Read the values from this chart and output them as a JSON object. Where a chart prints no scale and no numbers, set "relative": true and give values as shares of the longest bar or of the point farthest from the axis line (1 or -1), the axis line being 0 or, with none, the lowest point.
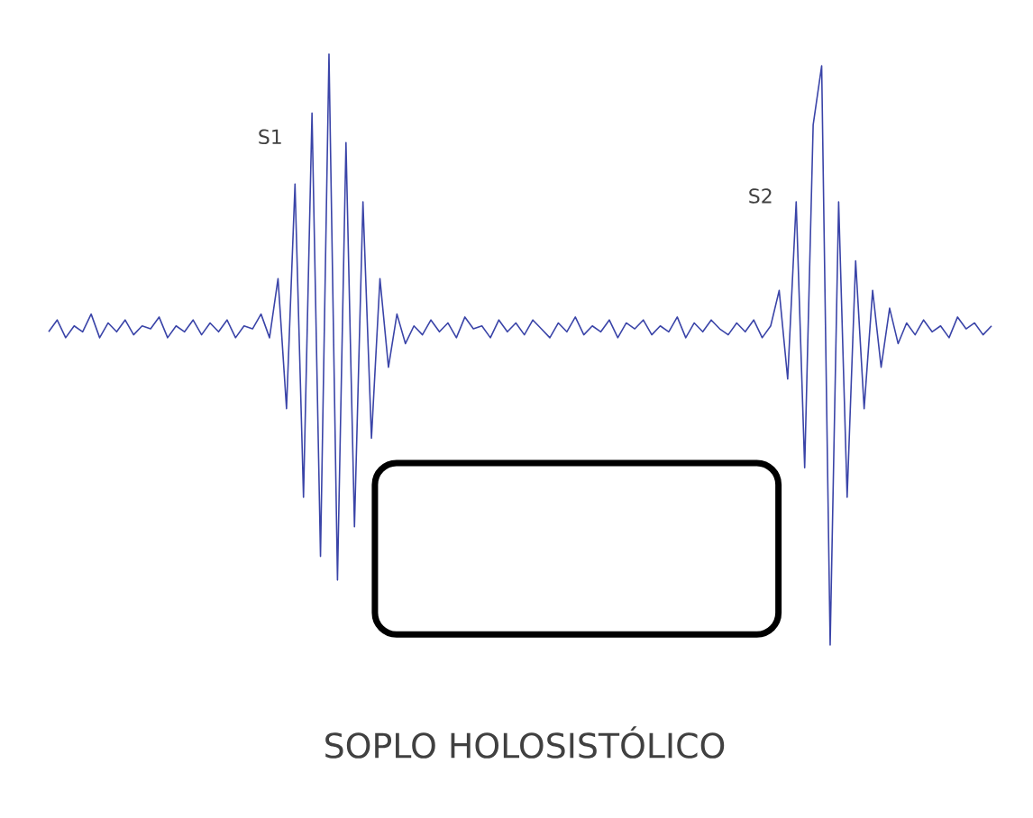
{
  "chart_data": {
    "type": "line",
    "relative": true,
    "title": "SOPLO HOLOSISTÓLICO",
    "color": "#3a44a8",
    "annotations": [
      "S1",
      "S2"
    ],
    "categories": [
      null,
      null,
      null,
      null,
      null,
      null,
      null,
      null,
      null,
      null,
      null,
      null,
      null,
      null,
      null,
      null,
      null,
      null,
      null,
      null,
      null,
      null,
      null,
      null,
      null,
      null,
      null,
      null,
      null,
      null,
      null,
      null,
      null,
      null,
      null,
      null,
      null,
      null,
      null,
      null,
      null,
      null,
      null,
      null,
      null,
      null,
      null,
      null,
      null,
      null,
      null,
      null,
      null,
      null,
      null,
      null,
      null,
      null,
      null,
      null,
      null,
      null,
      null,
      null,
      null,
      null,
      null,
      null,
      null,
      null,
      null,
      null,
      null,
      null,
      null,
      null,
      null,
      null,
      null,
      null,
      null,
      null,
      null,
      null,
      null,
      null,
      null,
      null,
      null,
      null,
      null,
      null,
      null,
      null,
      null,
      null,
      null,
      null,
      null,
      null,
      null,
      null,
      null,
      null,
      null,
      null,
      null,
      null,
      null,
      null,
      null,
      null
    ],
    "values": [
      0.53,
      0.55,
      0.52,
      0.54,
      0.53,
      0.56,
      0.52,
      0.545,
      0.53,
      0.55,
      0.525,
      0.54,
      0.535,
      0.555,
      0.52,
      0.54,
      0.53,
      0.55,
      0.525,
      0.545,
      0.53,
      0.55,
      0.52,
      0.54,
      0.535,
      0.56,
      0.52,
      0.62,
      0.4,
      0.78,
      0.25,
      0.9,
      0.15,
      1.0,
      0.11,
      0.85,
      0.2,
      0.75,
      0.35,
      0.62,
      0.47,
      0.56,
      0.51,
      0.54,
      0.525,
      0.55,
      0.53,
      0.545,
      0.52,
      0.555,
      0.535,
      0.54,
      0.52,
      0.55,
      0.53,
      0.545,
      0.525,
      0.55,
      0.535,
      0.52,
      0.545,
      0.53,
      0.555,
      0.525,
      0.54,
      0.53,
      0.55,
      0.52,
      0.545,
      0.535,
      0.55,
      0.525,
      0.54,
      0.53,
      0.555,
      0.52,
      0.545,
      0.53,
      0.55,
      0.535,
      0.525,
      0.545,
      0.53,
      0.55,
      0.52,
      0.54,
      0.6,
      0.45,
      0.75,
      0.3,
      0.88,
      0.98,
      0.0,
      0.75,
      0.25,
      0.65,
      0.4,
      0.6,
      0.47,
      0.57,
      0.51,
      0.545,
      0.525,
      0.55,
      0.53,
      0.54,
      0.52,
      0.555,
      0.535,
      0.545,
      0.525,
      0.54
    ]
  }
}
